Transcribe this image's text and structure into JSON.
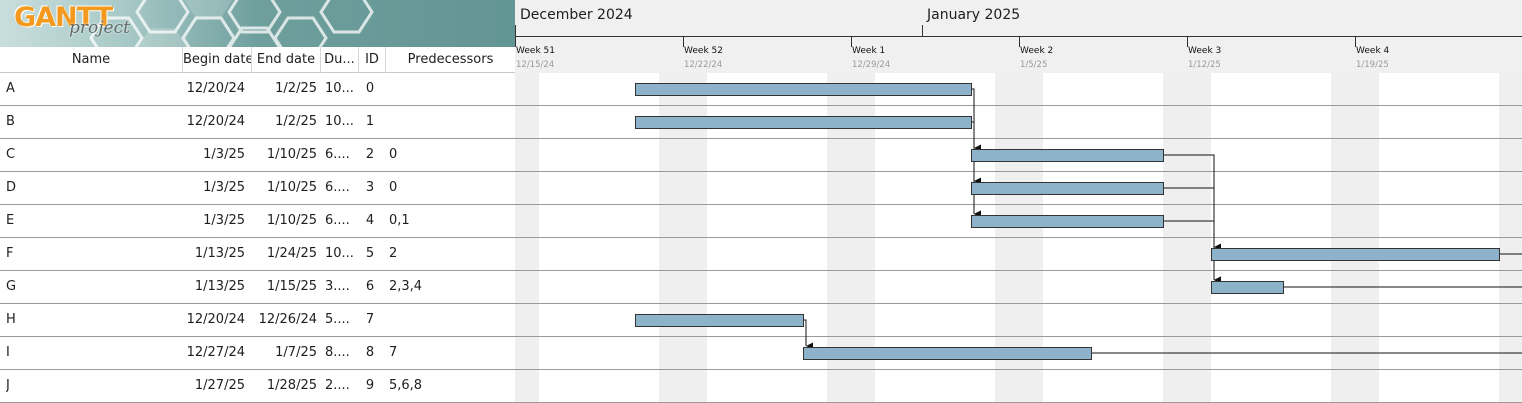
{
  "logo": {
    "gantt_text": "GANTT",
    "project_text": "project"
  },
  "table": {
    "headers": {
      "name": "Name",
      "begin": "Begin date",
      "end": "End date",
      "duration": "Du...",
      "id": "ID",
      "predecessors": "Predecessors"
    },
    "rows": [
      {
        "name": "A",
        "begin": "12/20/24",
        "end": "1/2/25",
        "duration": "10...",
        "id": "0",
        "predecessors": ""
      },
      {
        "name": "B",
        "begin": "12/20/24",
        "end": "1/2/25",
        "duration": "10...",
        "id": "1",
        "predecessors": ""
      },
      {
        "name": "C",
        "begin": "1/3/25",
        "end": "1/10/25",
        "duration": "6....",
        "id": "2",
        "predecessors": "0"
      },
      {
        "name": "D",
        "begin": "1/3/25",
        "end": "1/10/25",
        "duration": "6....",
        "id": "3",
        "predecessors": "0"
      },
      {
        "name": "E",
        "begin": "1/3/25",
        "end": "1/10/25",
        "duration": "6....",
        "id": "4",
        "predecessors": "0,1"
      },
      {
        "name": "F",
        "begin": "1/13/25",
        "end": "1/24/25",
        "duration": "10...",
        "id": "5",
        "predecessors": "2"
      },
      {
        "name": "G",
        "begin": "1/13/25",
        "end": "1/15/25",
        "duration": "3....",
        "id": "6",
        "predecessors": "2,3,4"
      },
      {
        "name": "H",
        "begin": "12/20/24",
        "end": "12/26/24",
        "duration": "5....",
        "id": "7",
        "predecessors": ""
      },
      {
        "name": "I",
        "begin": "12/27/24",
        "end": "1/7/25",
        "duration": "8....",
        "id": "8",
        "predecessors": "7"
      },
      {
        "name": "J",
        "begin": "1/27/25",
        "end": "1/28/25",
        "duration": "2....",
        "id": "9",
        "predecessors": "5,6,8"
      }
    ]
  },
  "timeline": {
    "months": [
      "December 2024",
      "January 2025"
    ],
    "weeks": [
      {
        "label": "Week 51",
        "date": "12/15/24"
      },
      {
        "label": "Week 52",
        "date": "12/22/24"
      },
      {
        "label": "Week 1",
        "date": "12/29/24"
      },
      {
        "label": "Week 2",
        "date": "1/5/25"
      },
      {
        "label": "Week 3",
        "date": "1/12/25"
      },
      {
        "label": "Week 4",
        "date": "1/19/25"
      }
    ]
  },
  "gantt": {
    "view_start_date": "2024-12-15",
    "bars": [
      {
        "task": "A",
        "start": "2024-12-20",
        "end": "2025-01-02"
      },
      {
        "task": "B",
        "start": "2024-12-20",
        "end": "2025-01-02"
      },
      {
        "task": "C",
        "start": "2025-01-03",
        "end": "2025-01-10"
      },
      {
        "task": "D",
        "start": "2025-01-03",
        "end": "2025-01-10"
      },
      {
        "task": "E",
        "start": "2025-01-03",
        "end": "2025-01-10"
      },
      {
        "task": "F",
        "start": "2025-01-13",
        "end": "2025-01-24"
      },
      {
        "task": "G",
        "start": "2025-01-13",
        "end": "2025-01-15"
      },
      {
        "task": "H",
        "start": "2024-12-20",
        "end": "2024-12-26"
      },
      {
        "task": "I",
        "start": "2024-12-27",
        "end": "2025-01-07"
      }
    ],
    "dependencies": [
      {
        "from": "A",
        "to": "C"
      },
      {
        "from": "A",
        "to": "D"
      },
      {
        "from": "A",
        "to": "E"
      },
      {
        "from": "B",
        "to": "E"
      },
      {
        "from": "C",
        "to": "F"
      },
      {
        "from": "C",
        "to": "G"
      },
      {
        "from": "D",
        "to": "G"
      },
      {
        "from": "E",
        "to": "G"
      },
      {
        "from": "F",
        "to": "J"
      },
      {
        "from": "G",
        "to": "J"
      },
      {
        "from": "H",
        "to": "I"
      },
      {
        "from": "I",
        "to": "J"
      }
    ],
    "colors": {
      "bar_fill": "#8db3cb",
      "bar_border": "#333333",
      "weekend_fill": "#efefef",
      "row_line": "#9a9a9a"
    }
  }
}
